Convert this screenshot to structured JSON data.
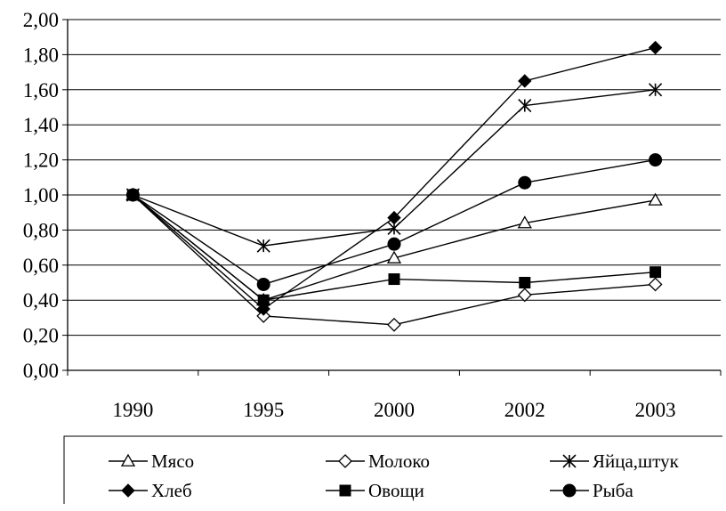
{
  "chart_data": {
    "type": "line",
    "title": "",
    "xlabel": "",
    "ylabel": "",
    "categories": [
      "1990",
      "1995",
      "2000",
      "2002",
      "2003"
    ],
    "ylim": [
      0,
      2
    ],
    "yticks": [
      "0,00",
      "0,20",
      "0,40",
      "0,60",
      "0,80",
      "1,00",
      "1,20",
      "1,40",
      "1,60",
      "1,80",
      "2,00"
    ],
    "grid": true,
    "legend_position": "bottom",
    "series": [
      {
        "name": "Мясо",
        "marker": "triangle-open",
        "values": [
          1.0,
          0.4,
          0.64,
          0.84,
          0.97
        ]
      },
      {
        "name": "Молоко",
        "marker": "diamond-open",
        "values": [
          1.0,
          0.31,
          0.26,
          0.43,
          0.49
        ]
      },
      {
        "name": "Яйца,штук",
        "marker": "asterisk",
        "values": [
          1.0,
          0.71,
          0.81,
          1.51,
          1.6
        ]
      },
      {
        "name": "Хлеб",
        "marker": "diamond-filled",
        "values": [
          1.0,
          0.35,
          0.87,
          1.65,
          1.84
        ]
      },
      {
        "name": "Овощи",
        "marker": "square-filled",
        "values": [
          1.0,
          0.4,
          0.52,
          0.5,
          0.56
        ]
      },
      {
        "name": "Рыба",
        "marker": "circle-filled",
        "values": [
          1.0,
          0.49,
          0.72,
          1.07,
          1.2
        ]
      }
    ]
  }
}
